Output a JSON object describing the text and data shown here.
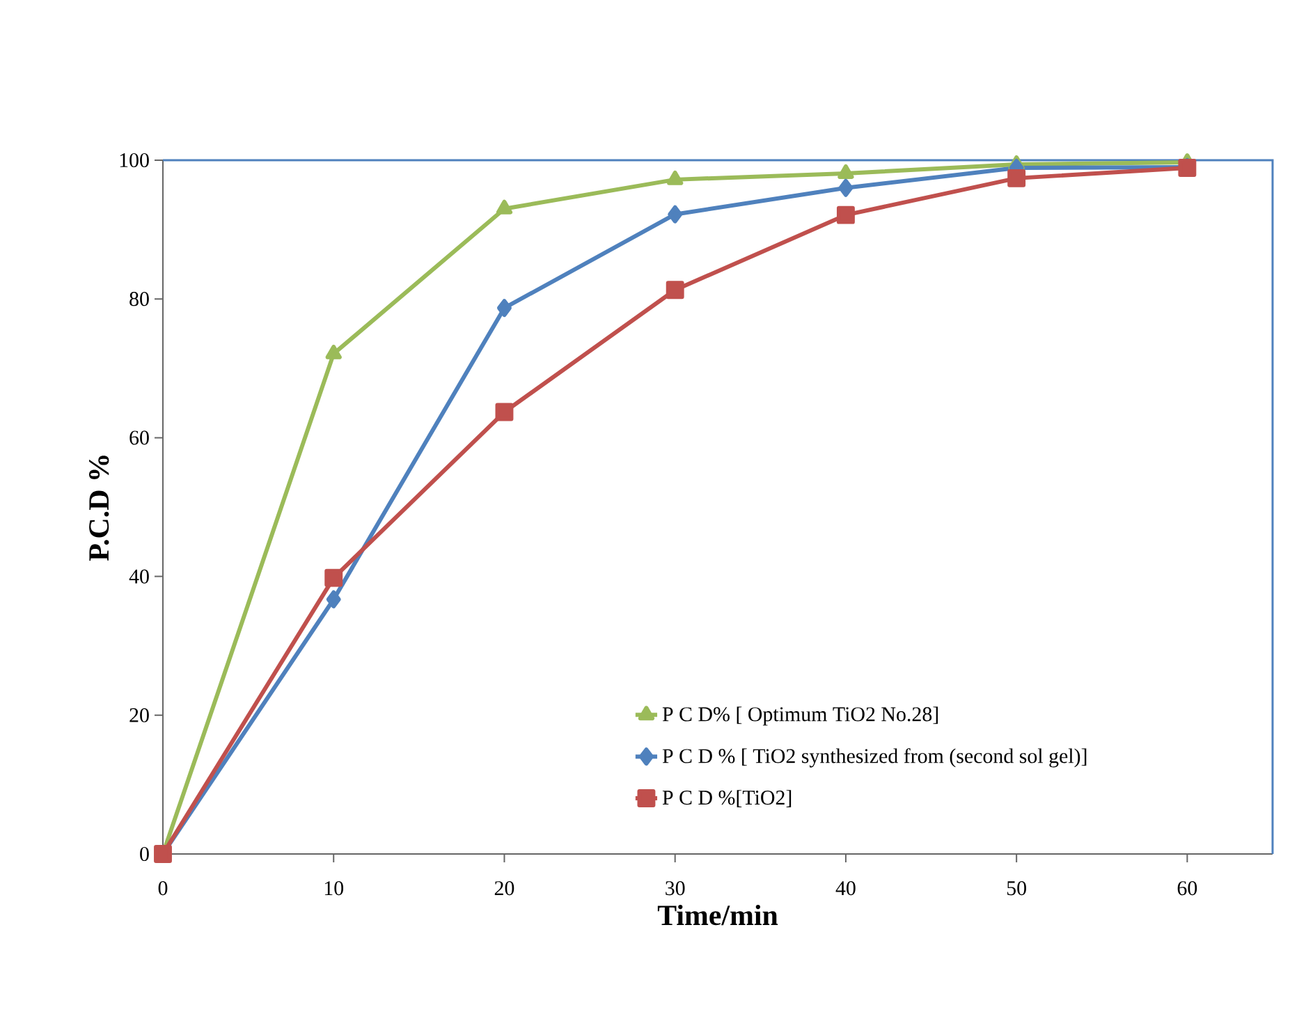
{
  "chart_data": {
    "type": "line",
    "xlabel": "Time/min",
    "ylabel": "P.C.D %",
    "x": [
      0,
      10,
      20,
      30,
      40,
      50,
      60
    ],
    "xlim": [
      0,
      65
    ],
    "xticks": [
      0,
      10,
      20,
      30,
      40,
      50,
      60
    ],
    "ylim": [
      0,
      100
    ],
    "yticks": [
      0,
      20,
      40,
      60,
      80,
      100
    ],
    "grid": false,
    "legend": "bottom right",
    "line_style": "solid",
    "series": [
      {
        "name": "P C D% [ Optimum TiO2 No.28]",
        "color": "#9bbb59",
        "marker": "triangle",
        "values": [
          0,
          72.1,
          93.0,
          97.2,
          98.1,
          99.4,
          99.7
        ]
      },
      {
        "name": "P C D % [ TiO2 synthesized from (second sol gel)]",
        "color": "#4f81bd",
        "marker": "diamond",
        "values": [
          0,
          36.7,
          78.7,
          92.2,
          96.0,
          98.9,
          99.0
        ]
      },
      {
        "name": "P C D %[TiO2]",
        "color": "#c0504d",
        "marker": "square",
        "values": [
          0,
          39.8,
          63.7,
          81.3,
          92.1,
          97.4,
          98.9
        ]
      }
    ]
  }
}
